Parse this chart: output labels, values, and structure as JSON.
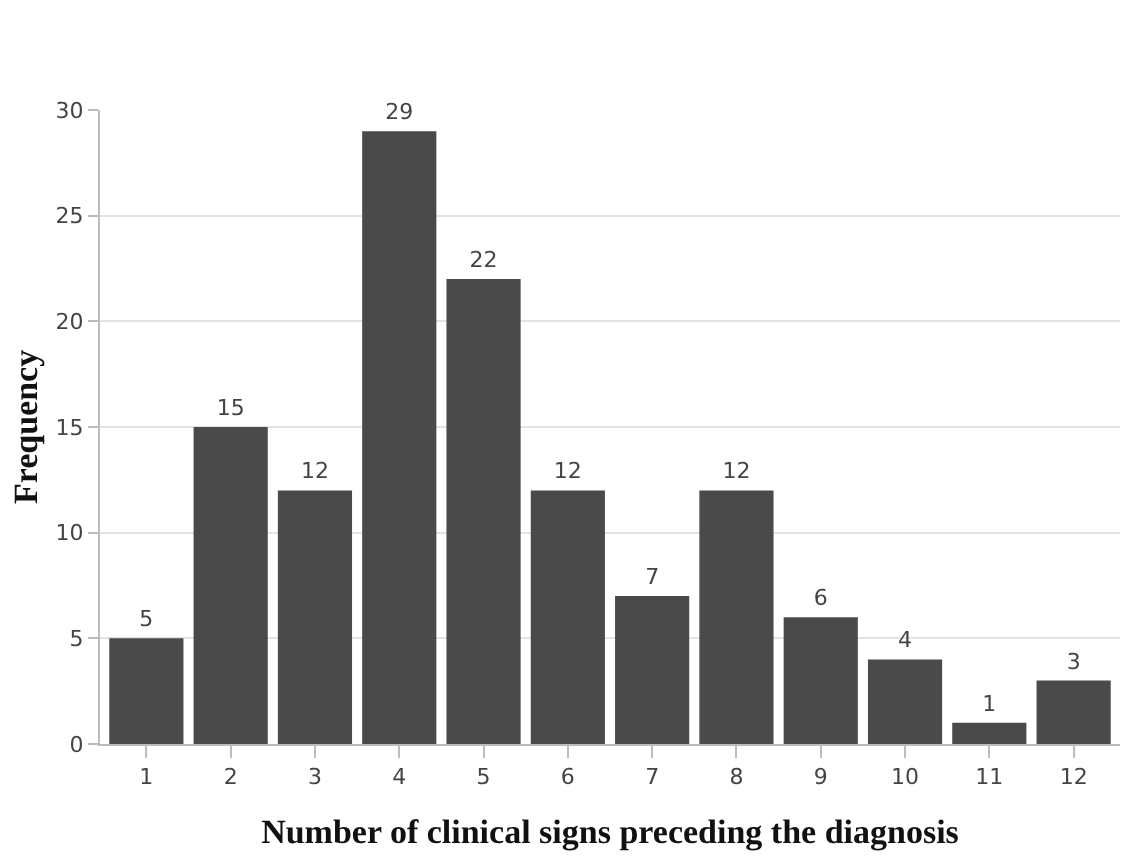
{
  "chart_data": {
    "type": "bar",
    "xlabel": "Number of clinical signs preceding the diagnosis",
    "ylabel": "Frequency",
    "categories": [
      "1",
      "2",
      "3",
      "4",
      "5",
      "6",
      "7",
      "8",
      "9",
      "10",
      "11",
      "12"
    ],
    "values": [
      5,
      15,
      12,
      29,
      22,
      12,
      7,
      12,
      6,
      4,
      1,
      3
    ],
    "color": "#4a4a4a",
    "ylim": [
      0,
      30
    ],
    "yticks": [
      0,
      5,
      10,
      15,
      20,
      25,
      30
    ],
    "grid": "y",
    "data_labels": true
  }
}
